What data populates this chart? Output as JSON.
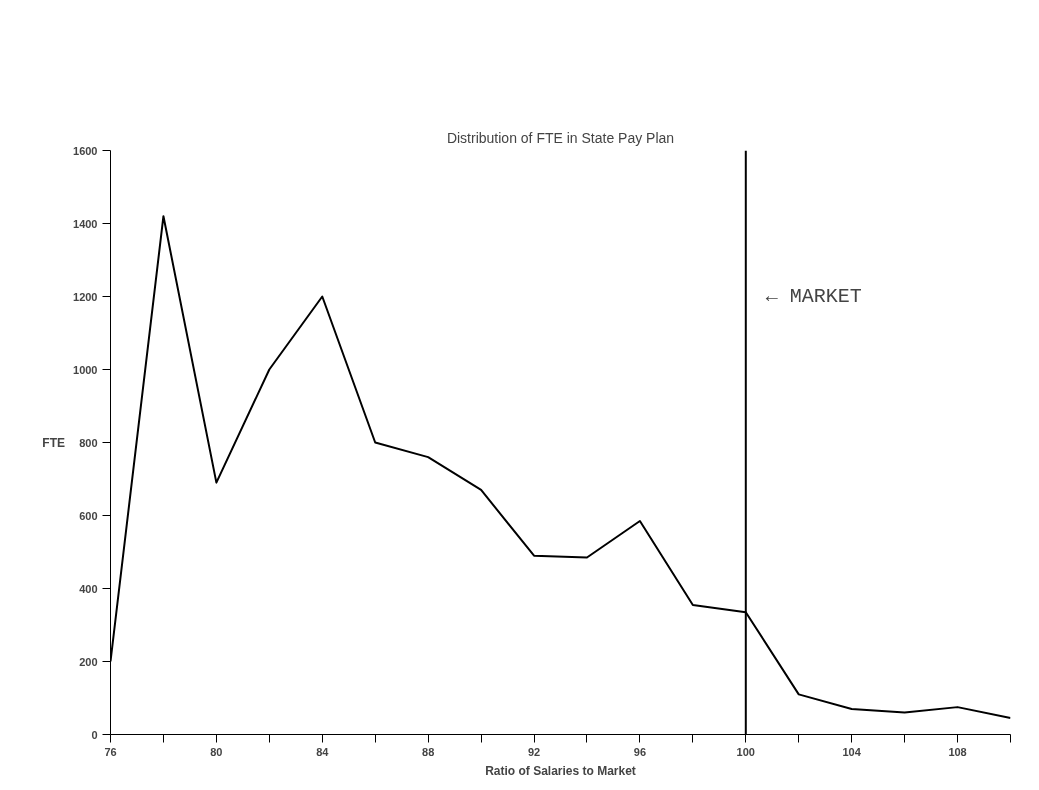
{
  "chart_data": {
    "type": "line",
    "title": "Distribution of FTE in State Pay Plan",
    "xlabel": "Ratio of Salaries to Market",
    "ylabel": "FTE",
    "x": [
      76,
      78,
      80,
      82,
      84,
      86,
      88,
      90,
      92,
      94,
      96,
      98,
      100,
      102,
      104,
      106,
      108,
      110
    ],
    "series": [
      {
        "color": "#000000",
        "values": [
          200,
          1420,
          690,
          1000,
          1200,
          800,
          760,
          670,
          490,
          485,
          585,
          355,
          335,
          110,
          70,
          60,
          75,
          45
        ]
      }
    ],
    "xlim": [
      76,
      110
    ],
    "ylim": [
      0,
      1600
    ],
    "xticks": [
      76,
      {
        "value": 78,
        "label": null
      },
      80,
      {
        "value": 82,
        "label": null
      },
      84,
      {
        "value": 86,
        "label": null
      },
      88,
      {
        "value": 90,
        "label": null
      },
      92,
      {
        "value": 94,
        "label": null
      },
      96,
      {
        "value": 98,
        "label": null
      },
      100,
      {
        "value": 102,
        "label": null
      },
      104,
      {
        "value": 106,
        "label": null
      },
      108,
      {
        "value": 110,
        "label": null
      }
    ],
    "yticks": [
      0,
      200,
      400,
      600,
      800,
      1000,
      1200,
      1400,
      1600
    ],
    "ref_lines": [
      {
        "axis": "x",
        "value": 100,
        "label": "← MARKET",
        "color": "#000000",
        "line_style": "solid"
      }
    ],
    "grid": false,
    "marker": "none",
    "line_style": "solid"
  }
}
